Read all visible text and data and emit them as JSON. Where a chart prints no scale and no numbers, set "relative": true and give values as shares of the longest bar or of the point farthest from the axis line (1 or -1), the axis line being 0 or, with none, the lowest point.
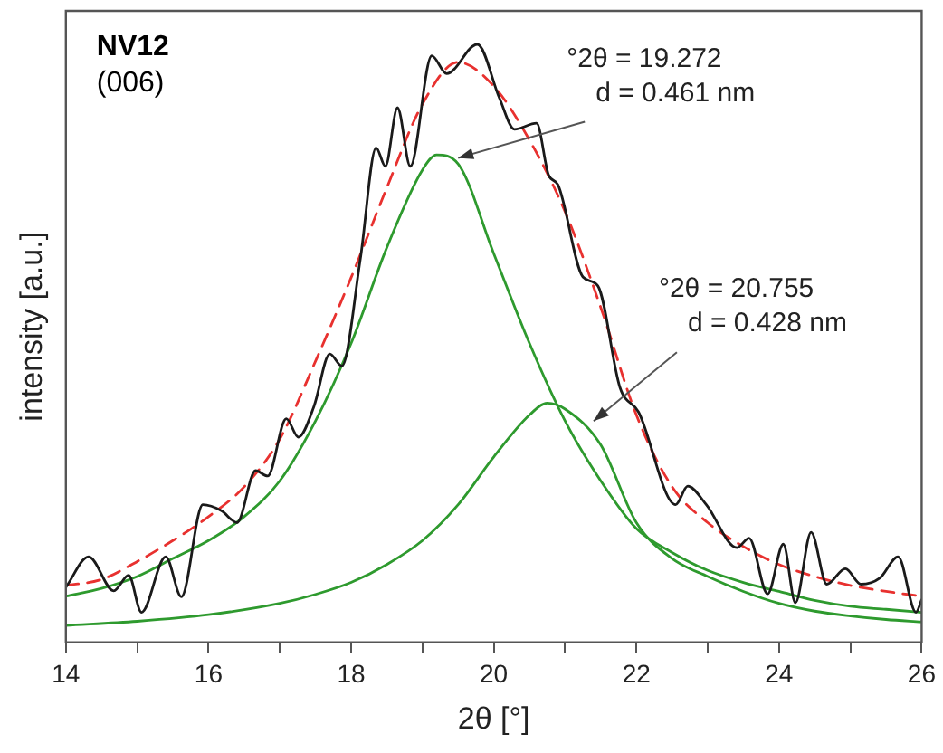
{
  "chart_data": {
    "type": "line",
    "xlabel": "2θ [°]",
    "ylabel": "intensity [a.u.]",
    "relative": true,
    "xlim": [
      14,
      26
    ],
    "xticks": [
      14,
      {
        "value": 15,
        "label": null
      },
      16,
      {
        "value": 17,
        "label": null
      },
      18,
      {
        "value": 19,
        "label": null
      },
      20,
      {
        "value": 21,
        "label": null
      },
      22,
      {
        "value": 23,
        "label": null
      },
      24,
      {
        "value": 25,
        "label": null
      },
      26
    ],
    "tick_labels": "x",
    "grid": false,
    "legend": false,
    "marker": "none",
    "annotations": [
      "NV12",
      "(006)",
      {
        "text": "°2θ = 19.272\nd = 0.461 nm",
        "x": 19.5,
        "y": 0.81
      },
      {
        "text": "°2θ = 20.755\nd = 0.428 nm",
        "x": 21.4,
        "y": 0.37
      }
    ],
    "series": [
      {
        "color": "#1a1a1a",
        "line_style": "solid",
        "x": [
          14.0,
          14.32,
          14.67,
          14.88,
          15.06,
          15.4,
          15.62,
          15.92,
          16.18,
          16.4,
          16.66,
          16.83,
          17.09,
          17.26,
          17.48,
          17.7,
          17.87,
          18.13,
          18.35,
          18.48,
          18.65,
          18.83,
          19.13,
          19.34,
          19.77,
          20.08,
          20.29,
          20.6,
          20.77,
          20.9,
          21.25,
          21.46,
          21.77,
          22.03,
          22.55,
          22.72,
          22.98,
          23.41,
          23.58,
          23.84,
          24.06,
          24.23,
          24.45,
          24.67,
          24.93,
          25.15,
          25.41,
          25.67,
          25.92,
          26.0
        ],
        "values": [
          0.092,
          0.143,
          0.086,
          0.112,
          0.05,
          0.143,
          0.076,
          0.23,
          0.22,
          0.2,
          0.287,
          0.278,
          0.374,
          0.343,
          0.395,
          0.482,
          0.462,
          0.642,
          0.827,
          0.796,
          0.894,
          0.796,
          0.981,
          0.951,
          1.0,
          0.91,
          0.858,
          0.868,
          0.781,
          0.765,
          0.611,
          0.596,
          0.426,
          0.385,
          0.23,
          0.261,
          0.23,
          0.158,
          0.174,
          0.081,
          0.164,
          0.066,
          0.184,
          0.097,
          0.123,
          0.097,
          0.107,
          0.143,
          0.05,
          0.071
        ]
      },
      {
        "color": "#e8312f",
        "line_style": "dashed",
        "x": [
          14,
          14.5,
          15,
          15.5,
          16,
          16.5,
          17,
          17.5,
          18,
          18.5,
          19,
          19.5,
          20,
          20.5,
          21,
          21.5,
          22,
          22.5,
          23,
          23.5,
          24,
          24.5,
          25,
          25.5,
          26
        ],
        "values": [
          0.095,
          0.105,
          0.135,
          0.17,
          0.21,
          0.26,
          0.34,
          0.47,
          0.61,
          0.76,
          0.9,
          0.97,
          0.93,
          0.84,
          0.72,
          0.56,
          0.38,
          0.26,
          0.2,
          0.16,
          0.13,
          0.11,
          0.095,
          0.085,
          0.077
        ]
      },
      {
        "color": "#2e9a2e",
        "line_style": "solid",
        "x": [
          14,
          14.5,
          15,
          15.5,
          16,
          16.5,
          17,
          17.5,
          18,
          18.5,
          19,
          19.2,
          19.5,
          20,
          20.5,
          21,
          21.5,
          22,
          22.5,
          23,
          23.5,
          24,
          24.5,
          25,
          25.5,
          26
        ],
        "values": [
          0.077,
          0.09,
          0.11,
          0.14,
          0.17,
          0.21,
          0.27,
          0.37,
          0.5,
          0.66,
          0.79,
          0.815,
          0.8,
          0.65,
          0.5,
          0.37,
          0.27,
          0.19,
          0.15,
          0.12,
          0.1,
          0.085,
          0.07,
          0.06,
          0.055,
          0.05
        ]
      },
      {
        "color": "#2e9a2e",
        "line_style": "solid",
        "x": [
          14,
          15,
          16,
          17,
          17.5,
          18,
          18.5,
          19,
          19.5,
          20,
          20.5,
          20.75,
          21,
          21.5,
          22,
          22.5,
          23,
          23.5,
          24,
          24.5,
          25,
          25.5,
          26
        ],
        "values": [
          0.028,
          0.035,
          0.046,
          0.065,
          0.08,
          0.1,
          0.13,
          0.17,
          0.23,
          0.31,
          0.38,
          0.4,
          0.39,
          0.33,
          0.2,
          0.14,
          0.11,
          0.085,
          0.065,
          0.052,
          0.044,
          0.038,
          0.034
        ]
      }
    ]
  }
}
